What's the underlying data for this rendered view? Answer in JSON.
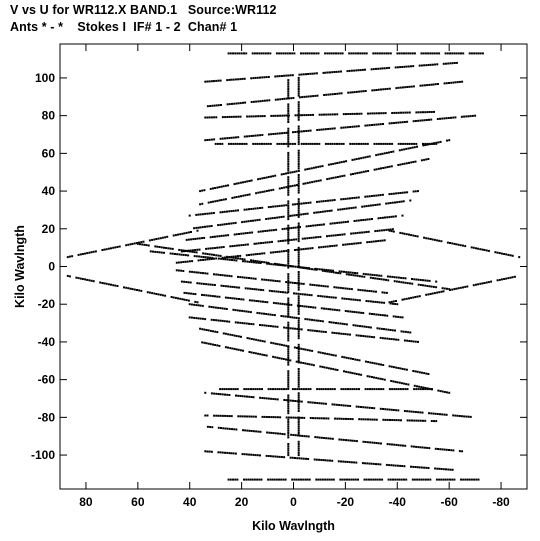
{
  "header": {
    "line1": "V vs U for WR112.X BAND.1   Source:WR112",
    "line2": "Ants * - *    Stokes I  IF# 1 - 2  Chan# 1"
  },
  "chart_data": {
    "type": "scatter",
    "xlabel": "Kilo Wavlngth",
    "ylabel": "Kilo Wavlngth",
    "xlim": [
      90,
      -90
    ],
    "ylim": [
      -118,
      118
    ],
    "x_reversed": true,
    "x_ticks": [
      80,
      60,
      40,
      20,
      0,
      -20,
      -40,
      -60,
      -80
    ],
    "y_ticks": [
      100,
      80,
      60,
      40,
      20,
      0,
      -20,
      -40,
      -60,
      -80,
      -100
    ],
    "x_tick_labels": [
      "80",
      "60",
      "40",
      "20",
      "0",
      "-20",
      "-40",
      "-60",
      "-80"
    ],
    "y_tick_labels": [
      "100",
      "80",
      "60",
      "40",
      "20",
      "0",
      "-20",
      "-40",
      "-60",
      "-80",
      "-100"
    ],
    "grid": false,
    "marker_color": "#000000",
    "uv_tracks": [
      {
        "start": [
          25,
          113
        ],
        "end": [
          -73,
          113
        ]
      },
      {
        "start": [
          34,
          98
        ],
        "end": [
          -63,
          108
        ]
      },
      {
        "start": [
          33,
          85
        ],
        "end": [
          -65,
          98
        ]
      },
      {
        "start": [
          34,
          79
        ],
        "end": [
          -55,
          82
        ]
      },
      {
        "start": [
          34,
          67
        ],
        "end": [
          -70,
          80
        ]
      },
      {
        "start": [
          30,
          65
        ],
        "end": [
          -55,
          65
        ]
      },
      {
        "start": [
          36,
          40
        ],
        "end": [
          -60,
          67
        ]
      },
      {
        "start": [
          36,
          33
        ],
        "end": [
          -52,
          57
        ]
      },
      {
        "start": [
          40,
          27
        ],
        "end": [
          -48,
          40
        ]
      },
      {
        "start": [
          40,
          20
        ],
        "end": [
          -45,
          35
        ]
      },
      {
        "start": [
          42,
          14
        ],
        "end": [
          -42,
          27
        ]
      },
      {
        "start": [
          43,
          8
        ],
        "end": [
          -40,
          20
        ]
      },
      {
        "start": [
          45,
          2
        ],
        "end": [
          -36,
          14
        ]
      },
      {
        "start": [
          55,
          8
        ],
        "end": [
          -55,
          -8
        ]
      },
      {
        "start": [
          60,
          12
        ],
        "end": [
          -60,
          -12
        ]
      },
      {
        "start": [
          25,
          -113
        ],
        "end": [
          -73,
          -113
        ]
      },
      {
        "start": [
          34,
          -98
        ],
        "end": [
          -63,
          -108
        ]
      },
      {
        "start": [
          33,
          -85
        ],
        "end": [
          -65,
          -98
        ]
      },
      {
        "start": [
          34,
          -79
        ],
        "end": [
          -55,
          -82
        ]
      },
      {
        "start": [
          34,
          -67
        ],
        "end": [
          -70,
          -80
        ]
      },
      {
        "start": [
          30,
          -65
        ],
        "end": [
          -55,
          -65
        ]
      },
      {
        "start": [
          36,
          -40
        ],
        "end": [
          -60,
          -67
        ]
      },
      {
        "start": [
          36,
          -33
        ],
        "end": [
          -52,
          -57
        ]
      },
      {
        "start": [
          40,
          -27
        ],
        "end": [
          -48,
          -40
        ]
      },
      {
        "start": [
          40,
          -20
        ],
        "end": [
          -45,
          -35
        ]
      },
      {
        "start": [
          42,
          -14
        ],
        "end": [
          -42,
          -27
        ]
      },
      {
        "start": [
          43,
          -8
        ],
        "end": [
          -40,
          -20
        ]
      },
      {
        "start": [
          45,
          -2
        ],
        "end": [
          -36,
          -14
        ]
      },
      {
        "start": [
          87,
          5
        ],
        "end": [
          37,
          19
        ]
      },
      {
        "start": [
          87,
          -5
        ],
        "end": [
          37,
          -19
        ]
      },
      {
        "start": [
          -87,
          5
        ],
        "end": [
          -37,
          19
        ]
      },
      {
        "start": [
          -87,
          -5
        ],
        "end": [
          -37,
          -19
        ]
      },
      {
        "start": [
          2,
          100
        ],
        "end": [
          2,
          -100
        ]
      },
      {
        "start": [
          -2,
          100
        ],
        "end": [
          -2,
          -100
        ]
      }
    ]
  }
}
